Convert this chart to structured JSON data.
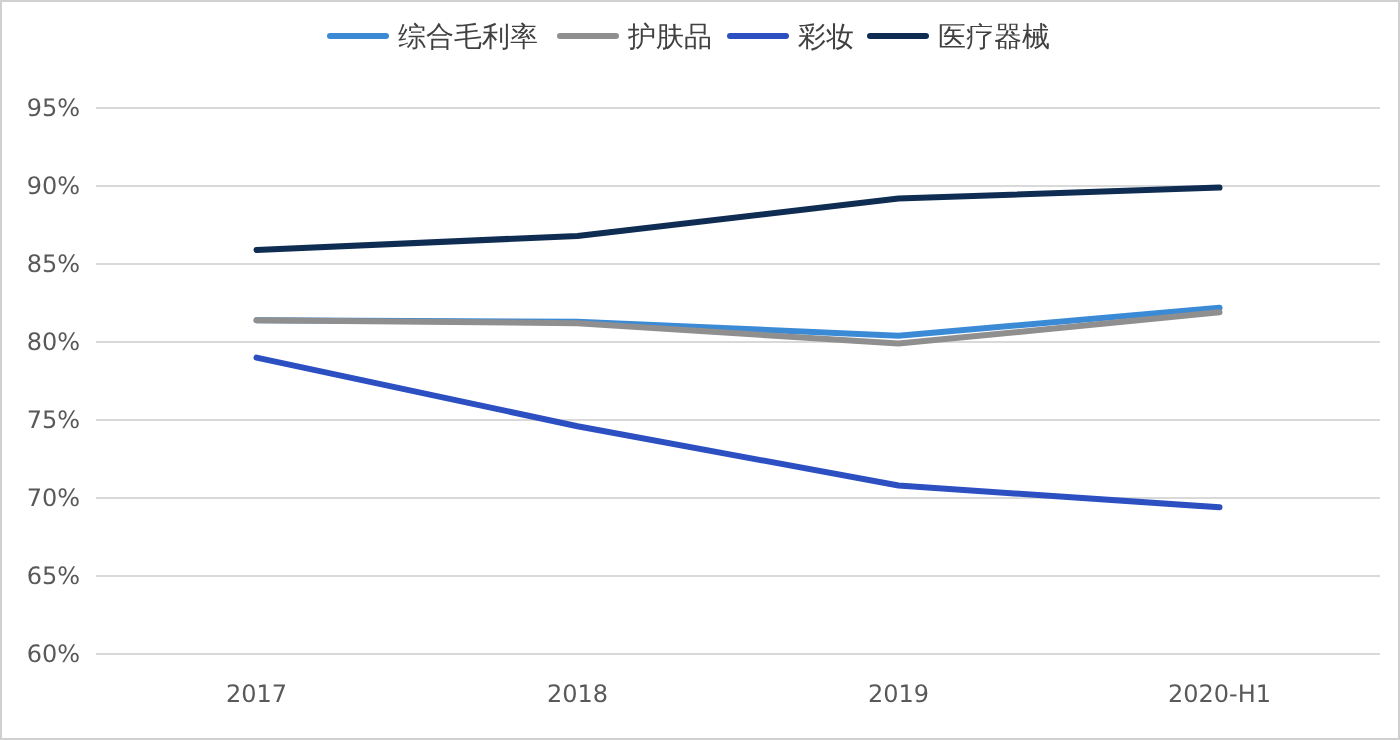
{
  "chart_data": {
    "type": "line",
    "categories": [
      "2017",
      "2018",
      "2019",
      "2020-H1"
    ],
    "series": [
      {
        "name": "综合毛利率",
        "color": "#3b8ad6",
        "values": [
          81.4,
          81.3,
          80.4,
          82.2
        ]
      },
      {
        "name": "护肤品",
        "color": "#8f8f8f",
        "values": [
          81.4,
          81.2,
          79.9,
          81.9
        ]
      },
      {
        "name": "彩妆",
        "color": "#2c4fc2",
        "values": [
          79.0,
          74.6,
          70.8,
          69.4
        ]
      },
      {
        "name": "医疗器械",
        "color": "#0f2d52",
        "values": [
          85.9,
          86.8,
          89.2,
          89.9
        ]
      }
    ],
    "ylim": [
      60,
      95
    ],
    "yticks": [
      {
        "value": 60,
        "label": "60%"
      },
      {
        "value": 65,
        "label": "65%"
      },
      {
        "value": 70,
        "label": "70%"
      },
      {
        "value": 75,
        "label": "75%"
      },
      {
        "value": 80,
        "label": "80%"
      },
      {
        "value": 85,
        "label": "85%"
      },
      {
        "value": 90,
        "label": "90%"
      },
      {
        "value": 95,
        "label": "95%"
      }
    ],
    "grid": "y",
    "legend": "top",
    "marker": "none",
    "line_style": "solid"
  }
}
